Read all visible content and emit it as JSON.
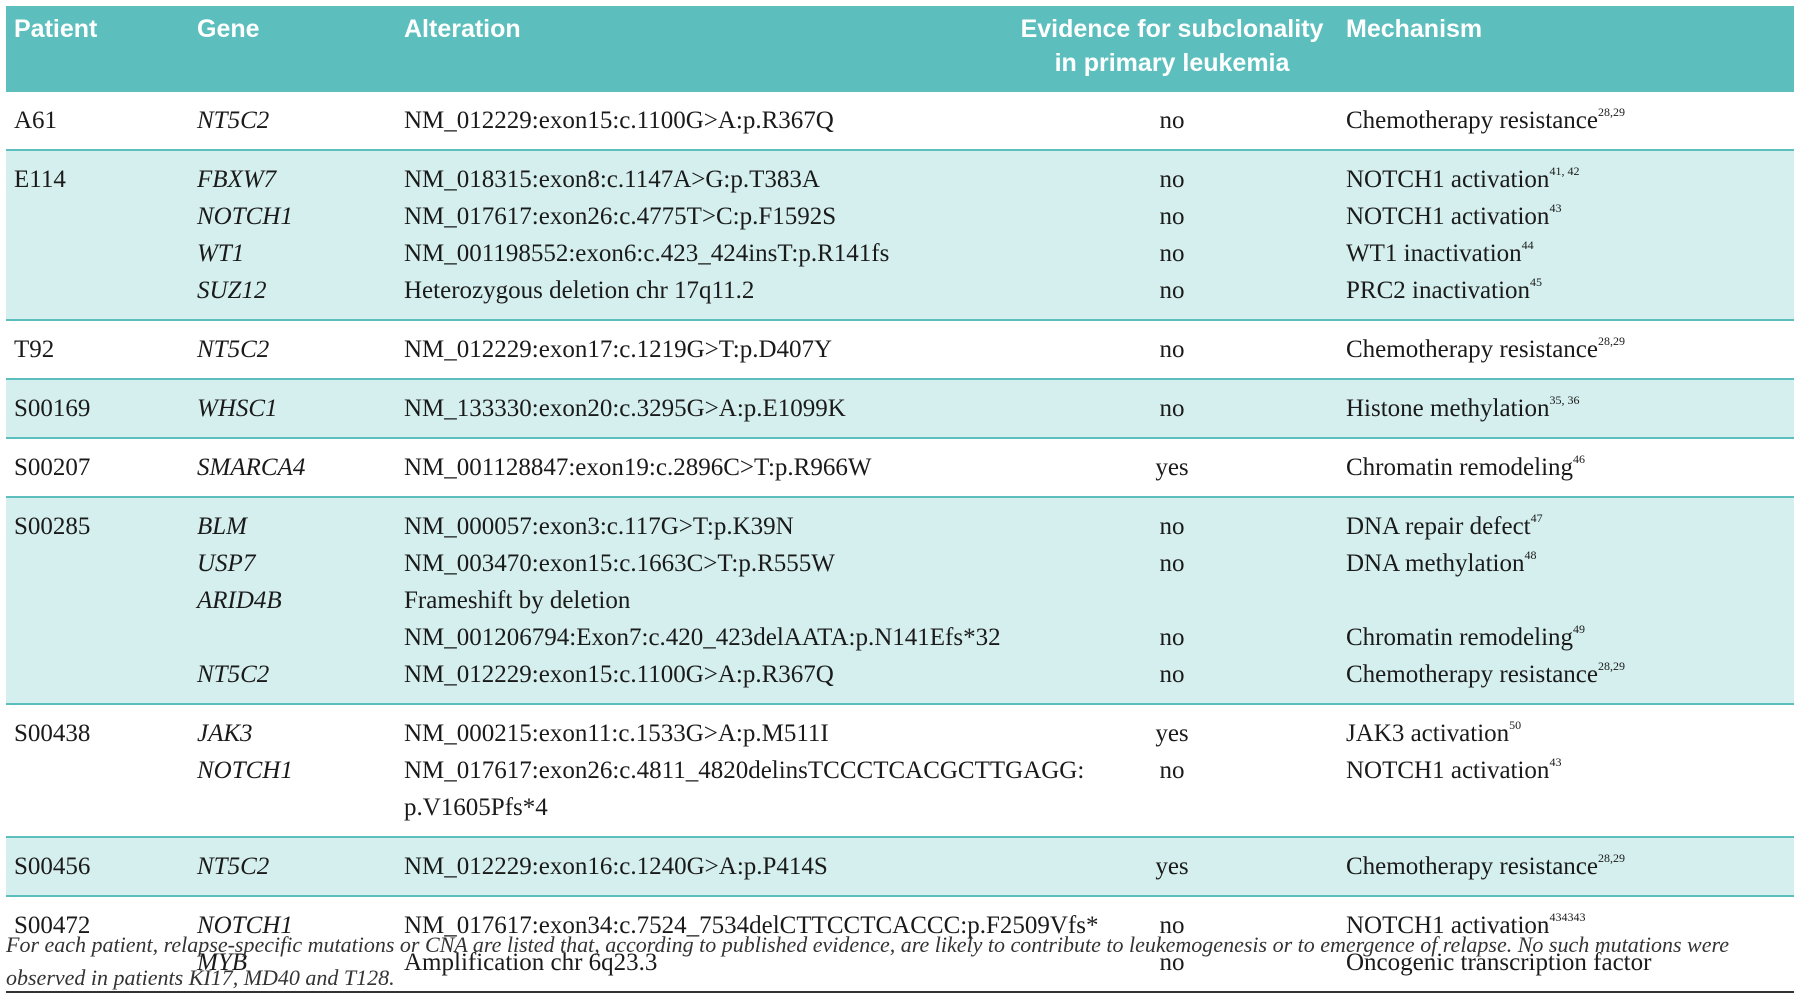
{
  "table": {
    "columns": [
      "Patient",
      "Gene",
      "Alteration",
      [
        "Evidence for subclonality",
        "in primary leukemia"
      ],
      "Mechanism"
    ],
    "groups": [
      {
        "patient": "A61",
        "rows": [
          {
            "gene": "NT5C2",
            "alteration": "NM_012229:exon15:c.1100G>A:p.R367Q",
            "evidence": "no",
            "mechanism": "Chemotherapy resistance",
            "ref": "28,29"
          }
        ]
      },
      {
        "patient": "E114",
        "rows": [
          {
            "gene": "FBXW7",
            "alteration": "NM_018315:exon8:c.1147A>G:p.T383A",
            "evidence": "no",
            "mechanism": "NOTCH1 activation",
            "ref": "41, 42"
          },
          {
            "gene": "NOTCH1",
            "alteration": "NM_017617:exon26:c.4775T>C:p.F1592S",
            "evidence": "no",
            "mechanism": "NOTCH1 activation",
            "ref": "43"
          },
          {
            "gene": "WT1",
            "alteration": "NM_001198552:exon6:c.423_424insT:p.R141fs",
            "evidence": "no",
            "mechanism": "WT1 inactivation",
            "ref": "44"
          },
          {
            "gene": "SUZ12",
            "alteration": "Heterozygous deletion chr 17q11.2",
            "evidence": "no",
            "mechanism": "PRC2 inactivation",
            "ref": "45"
          }
        ]
      },
      {
        "patient": "T92",
        "rows": [
          {
            "gene": "NT5C2",
            "alteration": "NM_012229:exon17:c.1219G>T:p.D407Y",
            "evidence": "no",
            "mechanism": "Chemotherapy resistance",
            "ref": "28,29"
          }
        ]
      },
      {
        "patient": "S00169",
        "rows": [
          {
            "gene": "WHSC1",
            "alteration": "NM_133330:exon20:c.3295G>A:p.E1099K",
            "evidence": "no",
            "mechanism": "Histone methylation",
            "ref": "35, 36"
          }
        ]
      },
      {
        "patient": "S00207",
        "rows": [
          {
            "gene": "SMARCA4",
            "alteration": "NM_001128847:exon19:c.2896C>T:p.R966W",
            "evidence": "yes",
            "mechanism": "Chromatin remodeling",
            "ref": "46"
          }
        ]
      },
      {
        "patient": "S00285",
        "rows": [
          {
            "gene": "BLM",
            "alteration": "NM_000057:exon3:c.117G>T:p.K39N",
            "evidence": "no",
            "mechanism": "DNA repair defect",
            "ref": "47"
          },
          {
            "gene": "USP7",
            "alteration": "NM_003470:exon15:c.1663C>T:p.R555W",
            "evidence": "no",
            "mechanism": "DNA methylation",
            "ref": "48"
          },
          {
            "gene": "ARID4B",
            "alteration": "Frameshift by deletion"
          },
          {
            "alteration": "NM_001206794:Exon7:c.420_423delAATA:p.N141Efs*32",
            "evidence": "no",
            "mechanism": "Chromatin remodeling",
            "ref": "49"
          },
          {
            "gene": "NT5C2",
            "alteration": "NM_012229:exon15:c.1100G>A:p.R367Q",
            "evidence": "no",
            "mechanism": "Chemotherapy resistance",
            "ref": "28,29"
          }
        ]
      },
      {
        "patient": "S00438",
        "rows": [
          {
            "gene": "JAK3",
            "alteration": "NM_000215:exon11:c.1533G>A:p.M511I",
            "evidence": "yes",
            "mechanism": "JAK3 activation",
            "ref": "50"
          },
          {
            "gene": "NOTCH1",
            "alteration": [
              "NM_017617:exon26:c.4811_4820delinsTCCCTCACGCTTGAGG:",
              "p.V1605Pfs*4"
            ],
            "evidence": "no",
            "mechanism": "NOTCH1 activation",
            "ref": "43"
          }
        ]
      },
      {
        "patient": "S00456",
        "rows": [
          {
            "gene": "NT5C2",
            "alteration": "NM_012229:exon16:c.1240G>A:p.P414S",
            "evidence": "yes",
            "mechanism": "Chemotherapy resistance",
            "ref": "28,29"
          }
        ]
      },
      {
        "patient": "S00472",
        "rows": [
          {
            "gene": "NOTCH1",
            "alteration": "NM_017617:exon34:c.7524_7534delCTTCCTCACCC:p.F2509Vfs*",
            "evidence": "no",
            "mechanism": "NOTCH1 activation",
            "ref": "434343"
          },
          {
            "gene": "MYB",
            "alteration": "Amplification chr 6q23.3",
            "evidence": "no",
            "mechanism": "Oncogenic transcription factor"
          }
        ]
      }
    ],
    "footnote": "For each patient, relapse-specific mutations or CNA are listed that, according to published evidence, are likely to contribute to leukemogenesis or to emergence of relapse. No such mutations were observed in patients KI17, MD40 and T128."
  }
}
